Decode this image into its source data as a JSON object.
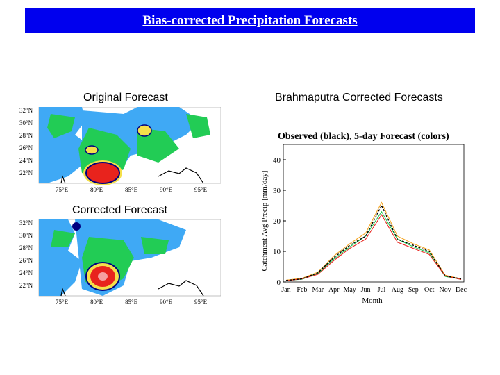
{
  "slide": {
    "title": "Bias-corrected Precipitation Forecasts"
  },
  "panels": {
    "original_label": "Original Forecast",
    "corrected_label": "Corrected Forecast",
    "brahmaputra_label": "Brahmaputra Corrected Forecasts"
  },
  "map": {
    "lat_labels": [
      "32°N",
      "30°N",
      "28°N",
      "26°N",
      "24°N",
      "22°N"
    ],
    "lon_labels": [
      "75°E",
      "80°E",
      "85°E",
      "90°E",
      "95°E"
    ],
    "colors": {
      "low": "#3fa9f5",
      "mid": "#22cc55",
      "high": "#f5e04a",
      "peak": "#e8231d",
      "core": "#000080"
    }
  },
  "chart_data": {
    "type": "line",
    "title": "Observed (black), 5-day Forecast (colors)",
    "xlabel": "Month",
    "ylabel": "Catchment Avg Precip [mm/day]",
    "categories": [
      "Jan",
      "Feb",
      "Mar",
      "Apr",
      "May",
      "Jun",
      "Jul",
      "Aug",
      "Sep",
      "Oct",
      "Nov",
      "Dec"
    ],
    "ylim": [
      0,
      45
    ],
    "yticks": [
      0,
      10,
      20,
      30,
      40
    ],
    "series": [
      {
        "values": [
          0.5,
          1,
          3,
          8,
          12,
          15,
          25,
          14,
          12,
          10,
          2,
          1
        ],
        "color": "#000000"
      },
      {
        "values": [
          0.4,
          1,
          2.5,
          7,
          11,
          14,
          22,
          13,
          11,
          9,
          2,
          0.8
        ],
        "color": "#e8231d"
      },
      {
        "values": [
          0.6,
          1.2,
          3.2,
          8.5,
          12.5,
          16,
          26,
          15,
          12.5,
          10.5,
          2.2,
          1
        ],
        "color": "#f5a623"
      },
      {
        "values": [
          0.5,
          0.9,
          2.8,
          7.5,
          11.5,
          15,
          23,
          14,
          11.5,
          9.5,
          1.8,
          0.9
        ],
        "color": "#22cc55"
      }
    ]
  }
}
